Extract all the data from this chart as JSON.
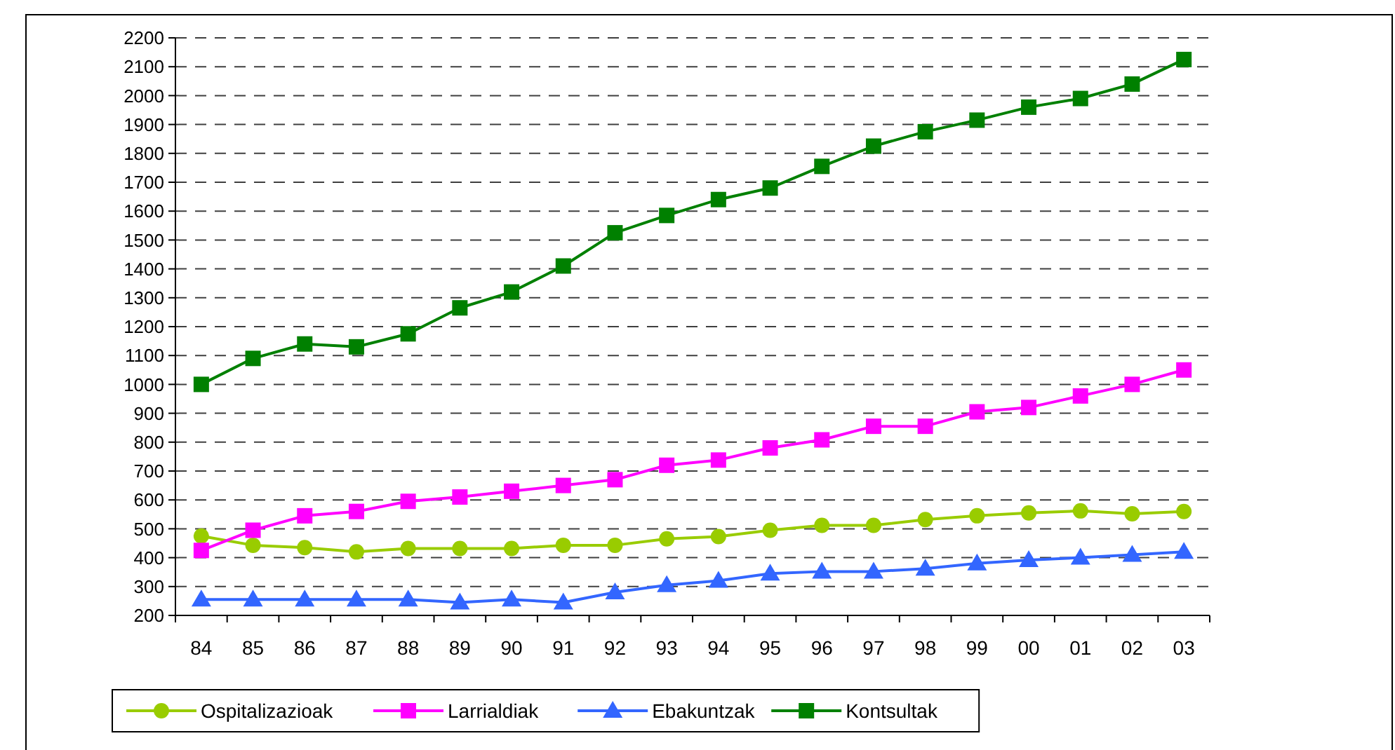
{
  "chart_data": {
    "type": "line",
    "categories": [
      "84",
      "85",
      "86",
      "87",
      "88",
      "89",
      "90",
      "91",
      "92",
      "93",
      "94",
      "95",
      "96",
      "97",
      "98",
      "99",
      "00",
      "01",
      "02",
      "03"
    ],
    "series": [
      {
        "name": "Ospitalizazioak",
        "color": "#99cc00",
        "marker": "circle",
        "values": [
          475,
          443,
          435,
          420,
          432,
          432,
          432,
          443,
          443,
          465,
          473,
          495,
          512,
          512,
          532,
          545,
          555,
          562,
          552,
          560
        ]
      },
      {
        "name": "Larrialdiak",
        "color": "#ff00ff",
        "marker": "square",
        "values": [
          425,
          495,
          545,
          560,
          595,
          610,
          630,
          650,
          670,
          720,
          738,
          780,
          808,
          855,
          855,
          905,
          920,
          960,
          1000,
          1050
        ]
      },
      {
        "name": "Ebakuntzak",
        "color": "#3366ff",
        "marker": "triangle",
        "values": [
          255,
          255,
          255,
          255,
          255,
          245,
          255,
          245,
          280,
          305,
          320,
          345,
          352,
          352,
          362,
          380,
          392,
          400,
          410,
          420
        ]
      },
      {
        "name": "Kontsultak",
        "color": "#008000",
        "marker": "square",
        "values": [
          1000,
          1090,
          1140,
          1130,
          1175,
          1265,
          1320,
          1410,
          1525,
          1585,
          1640,
          1680,
          1755,
          1825,
          1875,
          1915,
          1960,
          1990,
          2040,
          2125
        ]
      }
    ],
    "ylim": [
      200,
      2200
    ],
    "yticks": [
      200,
      300,
      400,
      500,
      600,
      700,
      800,
      900,
      1000,
      1100,
      1200,
      1300,
      1400,
      1500,
      1600,
      1700,
      1800,
      1900,
      2000,
      2100,
      2200
    ],
    "grid": "y",
    "line_style": "solid",
    "legend": "bottom"
  }
}
